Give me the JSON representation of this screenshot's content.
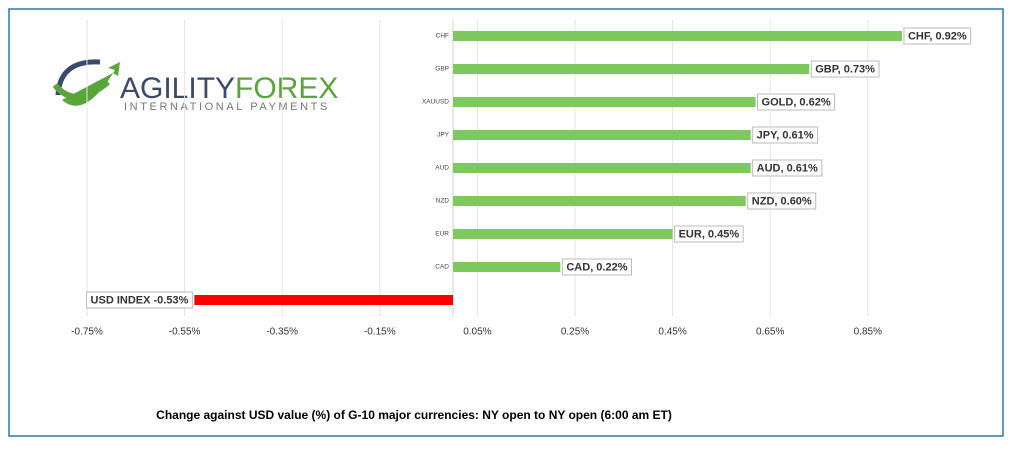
{
  "chart_data": {
    "type": "hbar",
    "title": "Change against  USD value (%)  of  G-10 major currencies: NY open to NY open (6:00 am ET)",
    "categories": [
      "CHF",
      "GBP",
      "XAUUSD",
      "JPY",
      "AUD",
      "NZD",
      "EUR",
      "CAD",
      null
    ],
    "values": [
      0.92,
      0.73,
      0.62,
      0.61,
      0.61,
      0.6,
      0.45,
      0.22,
      -0.53
    ],
    "value_labels": [
      "CHF, 0.92%",
      "GBP, 0.73%",
      "GOLD, 0.62%",
      "JPY, 0.61%",
      "AUD, 0.61%",
      "NZD, 0.60%",
      "EUR, 0.45%",
      "CAD, 0.22%",
      "USD INDEX -0.53%"
    ],
    "colors": [
      "#7dc95e",
      "#7dc95e",
      "#7dc95e",
      "#7dc95e",
      "#7dc95e",
      "#7dc95e",
      "#7dc95e",
      "#7dc95e",
      "#ff0000"
    ],
    "xlim": [
      -0.75,
      0.95
    ],
    "xticks": [
      {
        "value": -0.75,
        "label": "-0.75%"
      },
      {
        "value": -0.55,
        "label": "-0.55%"
      },
      {
        "value": -0.35,
        "label": "-0.35%"
      },
      {
        "value": -0.15,
        "label": "-0.15%"
      },
      {
        "value": 0.05,
        "label": "0.05%"
      },
      {
        "value": 0.25,
        "label": "0.25%"
      },
      {
        "value": 0.45,
        "label": "0.45%"
      },
      {
        "value": 0.65,
        "label": "0.65%"
      },
      {
        "value": 0.85,
        "label": "0.85%"
      }
    ],
    "grid": true
  },
  "logo": {
    "name_left": "AGILITY",
    "name_right": "FOREX",
    "tagline": "INTERNATIONAL PAYMENTS"
  }
}
